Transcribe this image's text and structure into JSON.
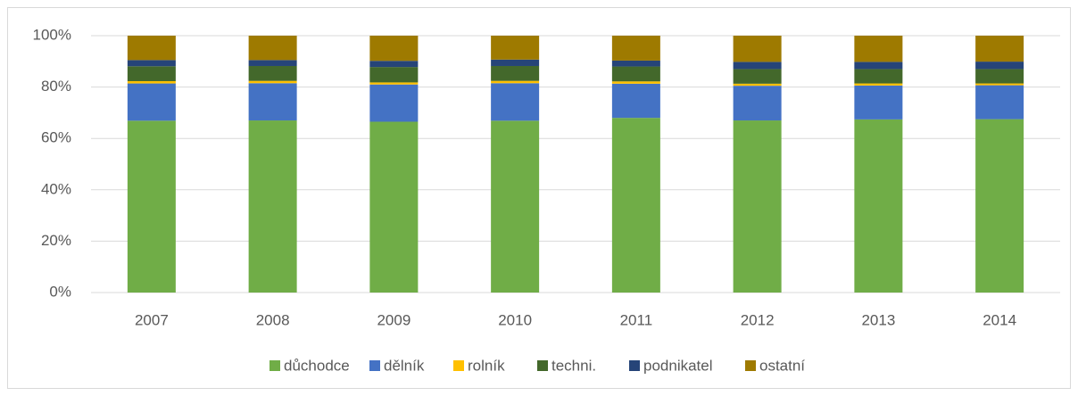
{
  "chart_data": {
    "type": "stacked_bar",
    "categories": [
      "2007",
      "2008",
      "2009",
      "2010",
      "2011",
      "2012",
      "2013",
      "2014"
    ],
    "series": [
      {
        "name": "důchodce",
        "color": "#70ad47",
        "values": [
          66.9,
          67.0,
          66.5,
          66.9,
          68.0,
          67.0,
          67.4,
          67.5
        ]
      },
      {
        "name": "dělník",
        "color": "#4472c4",
        "values": [
          14.5,
          14.5,
          14.5,
          14.6,
          13.3,
          13.5,
          13.2,
          13.2
        ]
      },
      {
        "name": "rolník",
        "color": "#ffc000",
        "values": [
          0.9,
          0.9,
          0.8,
          0.9,
          0.9,
          0.8,
          0.8,
          0.7
        ]
      },
      {
        "name": "techni.",
        "color": "#43682b",
        "values": [
          5.8,
          5.8,
          6.0,
          5.8,
          5.8,
          5.7,
          5.6,
          5.6
        ]
      },
      {
        "name": "podnikatel",
        "color": "#264478",
        "values": [
          2.4,
          2.3,
          2.4,
          2.5,
          2.3,
          2.8,
          2.8,
          2.9
        ]
      },
      {
        "name": "ostatní",
        "color": "#9e7a00",
        "values": [
          9.5,
          9.5,
          9.8,
          9.3,
          9.7,
          10.2,
          10.2,
          10.1
        ]
      }
    ],
    "ylim": [
      0,
      100
    ],
    "yticks": [
      {
        "value": 0,
        "label": "0%"
      },
      {
        "value": 20,
        "label": "20%"
      },
      {
        "value": 40,
        "label": "40%"
      },
      {
        "value": 60,
        "label": "60%"
      },
      {
        "value": 80,
        "label": "80%"
      },
      {
        "value": 100,
        "label": "100%"
      }
    ],
    "grid": true,
    "legend": "bottom"
  }
}
